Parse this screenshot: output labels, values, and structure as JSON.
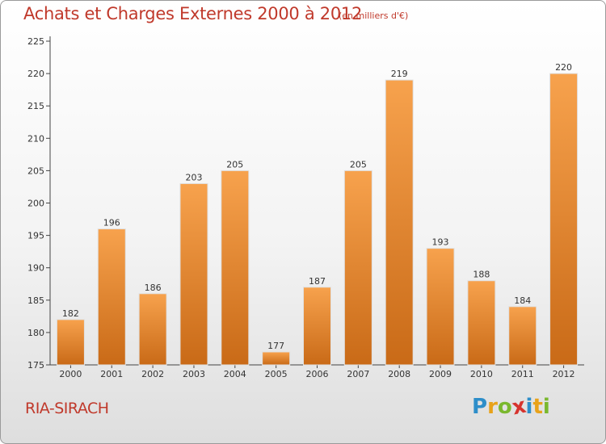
{
  "chart_data": {
    "type": "bar",
    "title": "Achats et Charges Externes 2000 à 2012",
    "subtitle": "(en milliers d'€)",
    "categories": [
      "2000",
      "2001",
      "2002",
      "2003",
      "2004",
      "2005",
      "2006",
      "2007",
      "2008",
      "2009",
      "2010",
      "2011",
      "2012"
    ],
    "values": [
      182,
      196,
      186,
      203,
      205,
      177,
      187,
      205,
      219,
      193,
      188,
      184,
      220
    ],
    "ylim": [
      175,
      225
    ],
    "yticks": [
      175,
      180,
      185,
      190,
      195,
      200,
      205,
      210,
      215,
      220,
      225
    ],
    "grid": false,
    "colors": {
      "bar_light": "#f7a24d",
      "bar_dark": "#c96a17",
      "title": "#c0392b"
    }
  },
  "footer": {
    "commune": "RIA-SIRACH",
    "logo": [
      {
        "char": "P",
        "color": "#2e8ec9"
      },
      {
        "char": "r",
        "color": "#e8a21a"
      },
      {
        "char": "o",
        "color": "#7ab82e"
      },
      {
        "char": "x",
        "color": "#d6332e"
      },
      {
        "char": "i",
        "color": "#2e8ec9"
      },
      {
        "char": "t",
        "color": "#e8a21a"
      },
      {
        "char": "i",
        "color": "#7ab82e"
      }
    ]
  }
}
